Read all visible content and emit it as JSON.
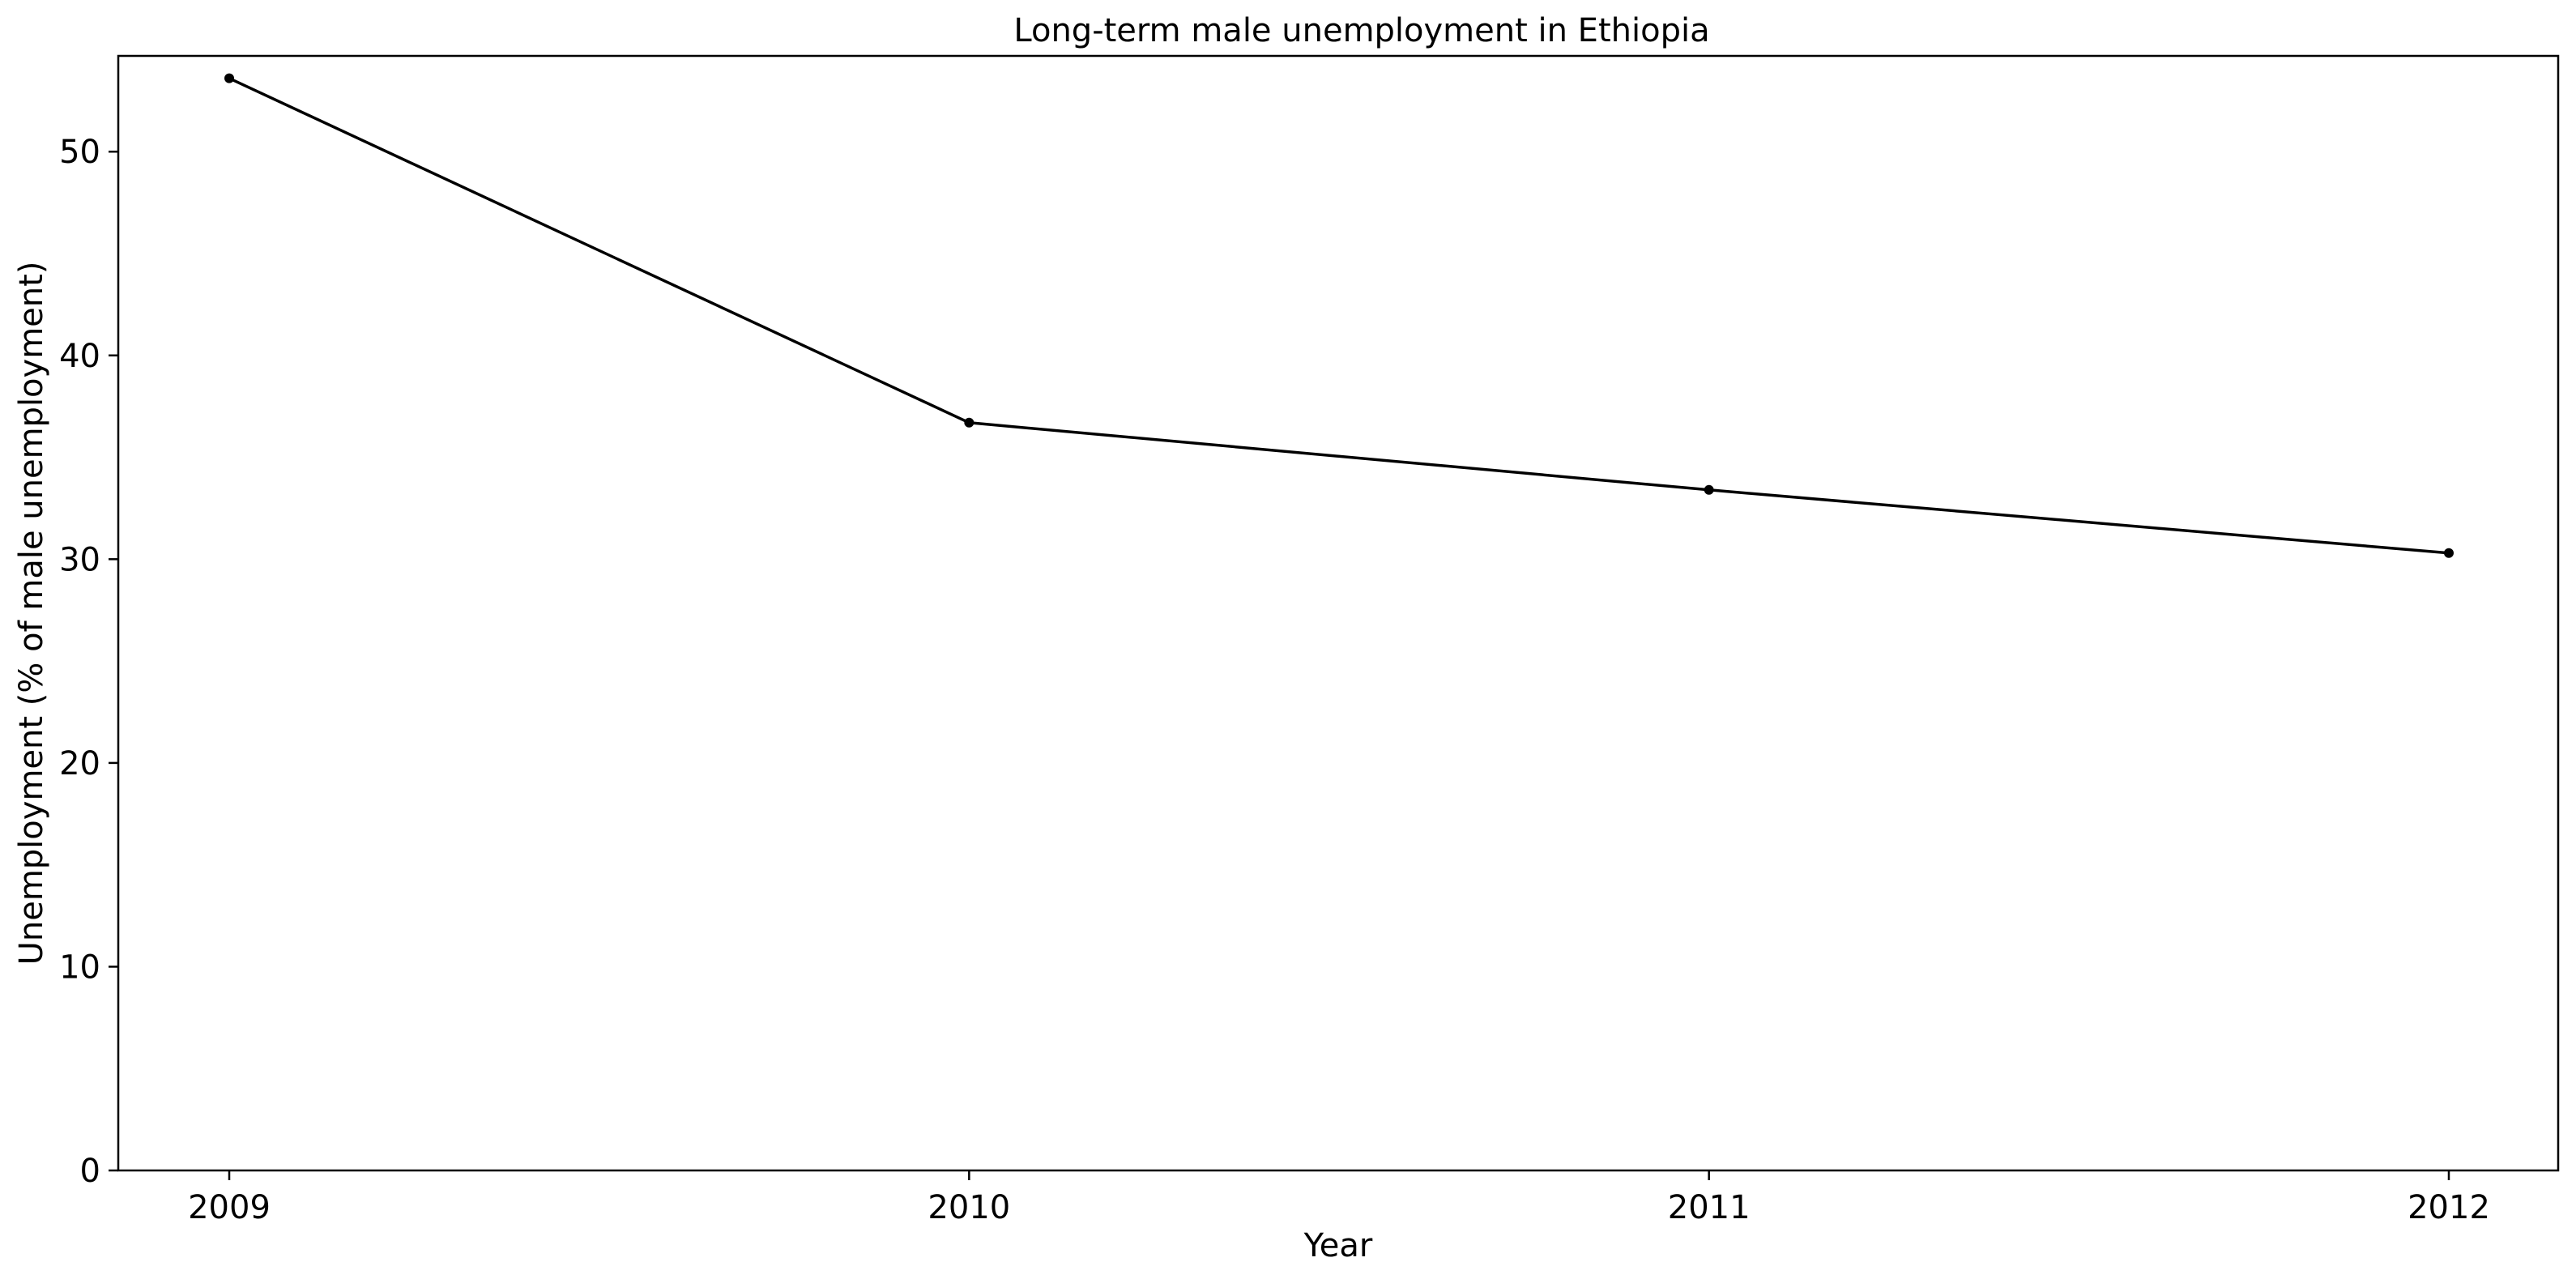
{
  "chart_data": {
    "type": "line",
    "title": "Long-term male unemployment in Ethiopia",
    "xlabel": "Year",
    "ylabel": "Unemployment (% of male unemployment)",
    "x": [
      "2009",
      "2010",
      "2011",
      "2012"
    ],
    "series": [
      {
        "values": [
          53.6,
          36.7,
          33.4,
          30.3
        ],
        "color": "#000000"
      }
    ],
    "ylim": [
      0,
      54.7
    ],
    "yticks": [
      0,
      10,
      20,
      30,
      40,
      50
    ],
    "grid": false,
    "legend": "none"
  }
}
